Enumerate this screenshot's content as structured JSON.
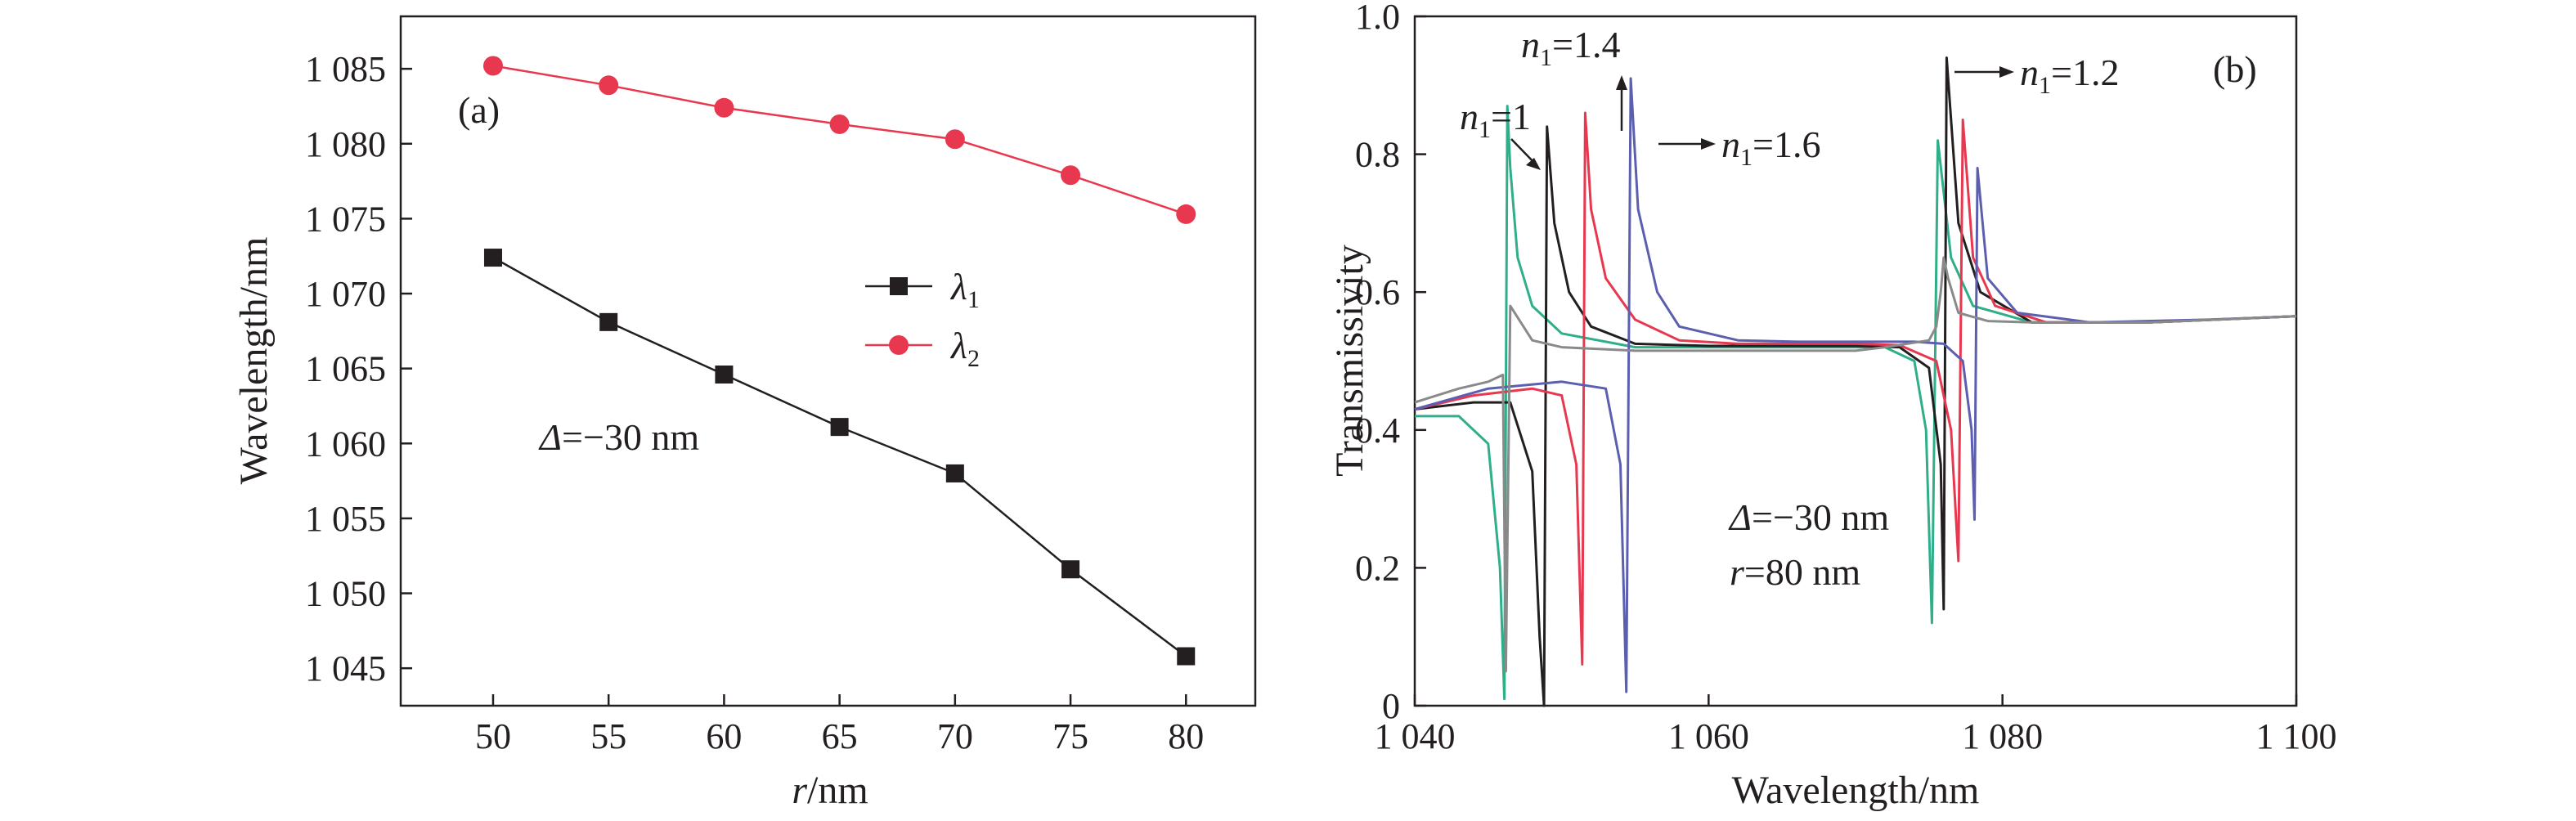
{
  "chart_data": [
    {
      "type": "line",
      "panel_label": "(a)",
      "xlabel_italic": "r",
      "xlabel_rest": "/nm",
      "ylabel": "Wavelength/nm",
      "xlim": [
        46,
        83
      ],
      "ylim": [
        1042.5,
        1088.5
      ],
      "x_ticks": [
        50,
        55,
        60,
        65,
        70,
        75,
        80
      ],
      "x_tick_labels": [
        "50",
        "55",
        "60",
        "65",
        "70",
        "75",
        "80"
      ],
      "y_ticks": [
        1045,
        1050,
        1055,
        1060,
        1065,
        1070,
        1075,
        1080,
        1085
      ],
      "y_tick_labels": [
        "1 045",
        "1 050",
        "1 055",
        "1 060",
        "1 065",
        "1 070",
        "1 075",
        "1 080",
        "1 085"
      ],
      "annotation": {
        "symbol": "Δ",
        "text": "=−30 nm"
      },
      "legend_position": "center",
      "series": [
        {
          "name": "λ1",
          "name_main": "λ",
          "name_sub": "1",
          "color": "#231f20",
          "marker": "square",
          "x": [
            50,
            55,
            60,
            65,
            70,
            75,
            80
          ],
          "values": [
            1072.4,
            1068.1,
            1064.6,
            1061.1,
            1058.0,
            1051.6,
            1045.8
          ]
        },
        {
          "name": "λ2",
          "name_main": "λ",
          "name_sub": "2",
          "color": "#e8384f",
          "marker": "circle",
          "x": [
            50,
            55,
            60,
            65,
            70,
            75,
            80
          ],
          "values": [
            1085.2,
            1083.9,
            1082.4,
            1081.3,
            1080.3,
            1077.9,
            1075.3
          ]
        }
      ]
    },
    {
      "type": "line",
      "panel_label": "(b)",
      "xlabel": "Wavelength/nm",
      "ylabel": "Transmissivity",
      "xlim": [
        1040,
        1100
      ],
      "ylim": [
        0,
        1.0
      ],
      "x_ticks": [
        1040,
        1060,
        1080,
        1100
      ],
      "x_tick_labels": [
        "1 040",
        "1 060",
        "1 080",
        "1 100"
      ],
      "y_ticks": [
        0,
        0.2,
        0.4,
        0.6,
        0.8,
        1.0
      ],
      "y_tick_labels": [
        "0",
        "0.2",
        "0.4",
        "0.6",
        "0.8",
        "1.0"
      ],
      "annotations": [
        {
          "symbol": "Δ",
          "text": "=−30 nm"
        },
        {
          "symbol": "r",
          "text": "=80 nm"
        }
      ],
      "curve_labels": [
        {
          "main": "n",
          "sub": "1",
          "value": "=1"
        },
        {
          "main": "n",
          "sub": "1",
          "value": "=1.4"
        },
        {
          "main": "n",
          "sub": "1",
          "value": "=1.6"
        },
        {
          "main": "n",
          "sub": "1",
          "value": "=1.2"
        }
      ],
      "series": [
        {
          "name": "n1=1",
          "color": "#2fae8a",
          "x": [
            1040,
            1043,
            1045,
            1045.8,
            1046.1,
            1046.3,
            1046.5,
            1047,
            1048,
            1050,
            1055,
            1060,
            1065,
            1070,
            1072,
            1074,
            1074.8,
            1075.2,
            1075.6,
            1076.5,
            1078,
            1082,
            1090,
            1100
          ],
          "values": [
            0.42,
            0.42,
            0.38,
            0.2,
            0.01,
            0.87,
            0.78,
            0.65,
            0.58,
            0.54,
            0.52,
            0.52,
            0.52,
            0.52,
            0.52,
            0.5,
            0.4,
            0.12,
            0.82,
            0.65,
            0.58,
            0.556,
            0.556,
            0.565
          ]
        },
        {
          "name": "n1=1.2",
          "color": "#231f20",
          "x": [
            1040,
            1044,
            1046.5,
            1048,
            1048.5,
            1048.8,
            1049,
            1049.5,
            1050.5,
            1052,
            1055,
            1060,
            1065,
            1070,
            1073,
            1075,
            1075.8,
            1076.0,
            1076.2,
            1077,
            1078.5,
            1082,
            1090,
            1100
          ],
          "values": [
            0.43,
            0.44,
            0.44,
            0.34,
            0.1,
            0.0,
            0.84,
            0.7,
            0.6,
            0.55,
            0.525,
            0.522,
            0.522,
            0.522,
            0.52,
            0.49,
            0.35,
            0.14,
            0.94,
            0.7,
            0.6,
            0.556,
            0.556,
            0.565
          ]
        },
        {
          "name": "n1=1.4",
          "color": "#e8384f",
          "x": [
            1040,
            1044,
            1048,
            1050,
            1051,
            1051.4,
            1051.6,
            1052,
            1053,
            1055,
            1058,
            1062,
            1066,
            1070,
            1073,
            1075.5,
            1076.5,
            1077.0,
            1077.3,
            1078,
            1079.5,
            1083,
            1090,
            1100
          ],
          "values": [
            0.43,
            0.45,
            0.46,
            0.45,
            0.35,
            0.06,
            0.86,
            0.72,
            0.62,
            0.56,
            0.53,
            0.525,
            0.525,
            0.525,
            0.523,
            0.5,
            0.4,
            0.21,
            0.85,
            0.65,
            0.58,
            0.556,
            0.556,
            0.565
          ]
        },
        {
          "name": "n1=1.6",
          "color": "#5c5fb0",
          "x": [
            1040,
            1045,
            1050,
            1053,
            1054,
            1054.4,
            1054.7,
            1055.2,
            1056.5,
            1058,
            1062,
            1066,
            1070,
            1074,
            1076,
            1077.3,
            1077.9,
            1078.1,
            1078.3,
            1079,
            1081,
            1086,
            1094,
            1100
          ],
          "values": [
            0.43,
            0.46,
            0.47,
            0.46,
            0.35,
            0.02,
            0.91,
            0.72,
            0.6,
            0.55,
            0.53,
            0.528,
            0.528,
            0.528,
            0.525,
            0.5,
            0.4,
            0.27,
            0.78,
            0.62,
            0.57,
            0.556,
            0.56,
            0.565
          ]
        },
        {
          "name": "",
          "color": "#8a8a8a",
          "x": [
            1040,
            1043,
            1045,
            1046.0,
            1046.2,
            1046.5,
            1048,
            1050,
            1055,
            1060,
            1070,
            1072,
            1075,
            1075.5,
            1075.8,
            1076.0,
            1076.3,
            1077,
            1079,
            1082,
            1090,
            1100
          ],
          "values": [
            0.44,
            0.46,
            0.47,
            0.48,
            0.05,
            0.58,
            0.53,
            0.52,
            0.515,
            0.515,
            0.515,
            0.52,
            0.53,
            0.55,
            0.6,
            0.65,
            0.62,
            0.57,
            0.558,
            0.556,
            0.556,
            0.565
          ]
        }
      ]
    }
  ]
}
